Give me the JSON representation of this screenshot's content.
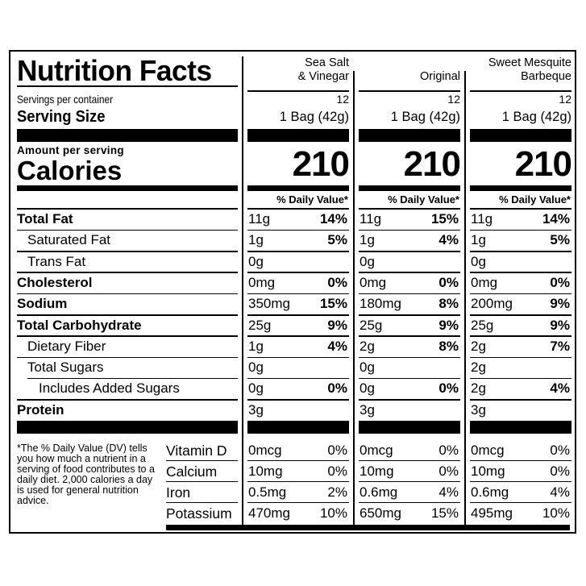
{
  "title": "Nutrition Facts",
  "servings_label": "Servings per container",
  "serving_size_label": "Serving Size",
  "amount_per_serving": "Amount per serving",
  "calories_label": "Calories",
  "daily_value_header": "% Daily Value*",
  "products": [
    {
      "name_line1": "Sea Salt",
      "name_line2": "& Vinegar",
      "servings": "12",
      "serving_size": "1 Bag (42g)",
      "calories": "210",
      "nutrients": [
        {
          "amount": "11g",
          "dv": "14%"
        },
        {
          "amount": "1g",
          "dv": "5%"
        },
        {
          "amount": "0g",
          "dv": ""
        },
        {
          "amount": "0mg",
          "dv": "0%"
        },
        {
          "amount": "350mg",
          "dv": "15%"
        },
        {
          "amount": "25g",
          "dv": "9%"
        },
        {
          "amount": "1g",
          "dv": "4%"
        },
        {
          "amount": "0g",
          "dv": ""
        },
        {
          "amount": "0g",
          "dv": "0%"
        },
        {
          "amount": "3g",
          "dv": ""
        }
      ],
      "vitamins": [
        {
          "amount": "0mcg",
          "dv": "0%"
        },
        {
          "amount": "10mg",
          "dv": "0%"
        },
        {
          "amount": "0.5mg",
          "dv": "2%"
        },
        {
          "amount": "470mg",
          "dv": "10%"
        }
      ]
    },
    {
      "name_line1": "",
      "name_line2": "Original",
      "servings": "12",
      "serving_size": "1 Bag (42g)",
      "calories": "210",
      "nutrients": [
        {
          "amount": "11g",
          "dv": "15%"
        },
        {
          "amount": "1g",
          "dv": "4%"
        },
        {
          "amount": "0g",
          "dv": ""
        },
        {
          "amount": "0mg",
          "dv": "0%"
        },
        {
          "amount": "180mg",
          "dv": "8%"
        },
        {
          "amount": "25g",
          "dv": "9%"
        },
        {
          "amount": "2g",
          "dv": "8%"
        },
        {
          "amount": "0g",
          "dv": ""
        },
        {
          "amount": "0g",
          "dv": "0%"
        },
        {
          "amount": "3g",
          "dv": ""
        }
      ],
      "vitamins": [
        {
          "amount": "0mcg",
          "dv": "0%"
        },
        {
          "amount": "10mg",
          "dv": "0%"
        },
        {
          "amount": "0.6mg",
          "dv": "4%"
        },
        {
          "amount": "650mg",
          "dv": "15%"
        }
      ]
    },
    {
      "name_line1": "Sweet Mesquite",
      "name_line2": "Barbeque",
      "servings": "12",
      "serving_size": "1 Bag (42g)",
      "calories": "210",
      "nutrients": [
        {
          "amount": "11g",
          "dv": "14%"
        },
        {
          "amount": "1g",
          "dv": "5%"
        },
        {
          "amount": "0g",
          "dv": ""
        },
        {
          "amount": "0mg",
          "dv": "0%"
        },
        {
          "amount": "200mg",
          "dv": "9%"
        },
        {
          "amount": "25g",
          "dv": "9%"
        },
        {
          "amount": "2g",
          "dv": "7%"
        },
        {
          "amount": "2g",
          "dv": ""
        },
        {
          "amount": "2g",
          "dv": "4%"
        },
        {
          "amount": "3g",
          "dv": ""
        }
      ],
      "vitamins": [
        {
          "amount": "0mcg",
          "dv": "0%"
        },
        {
          "amount": "10mg",
          "dv": "0%"
        },
        {
          "amount": "0.6mg",
          "dv": "4%"
        },
        {
          "amount": "495mg",
          "dv": "10%"
        }
      ]
    }
  ],
  "nutrient_labels": [
    {
      "label": "Total Fat",
      "bold": true,
      "indent": 0
    },
    {
      "label": "Saturated Fat",
      "bold": false,
      "indent": 1
    },
    {
      "label": "Trans Fat",
      "bold": false,
      "indent": 1
    },
    {
      "label": "Cholesterol",
      "bold": true,
      "indent": 0
    },
    {
      "label": "Sodium",
      "bold": true,
      "indent": 0
    },
    {
      "label": "Total Carbohydrate",
      "bold": true,
      "indent": 0
    },
    {
      "label": "Dietary Fiber",
      "bold": false,
      "indent": 1
    },
    {
      "label": "Total Sugars",
      "bold": false,
      "indent": 1
    },
    {
      "label": "Includes Added Sugars",
      "bold": false,
      "indent": 2
    },
    {
      "label": "Protein",
      "bold": true,
      "indent": 0
    }
  ],
  "vitamin_labels": [
    "Vitamin D",
    "Calcium",
    "Iron",
    "Potassium"
  ],
  "footnote": "*The % Daily Value (DV) tells you how much a nutrient in a serving of food contributes to a daily diet. 2,000 calories a day is used for general nutrition advice."
}
